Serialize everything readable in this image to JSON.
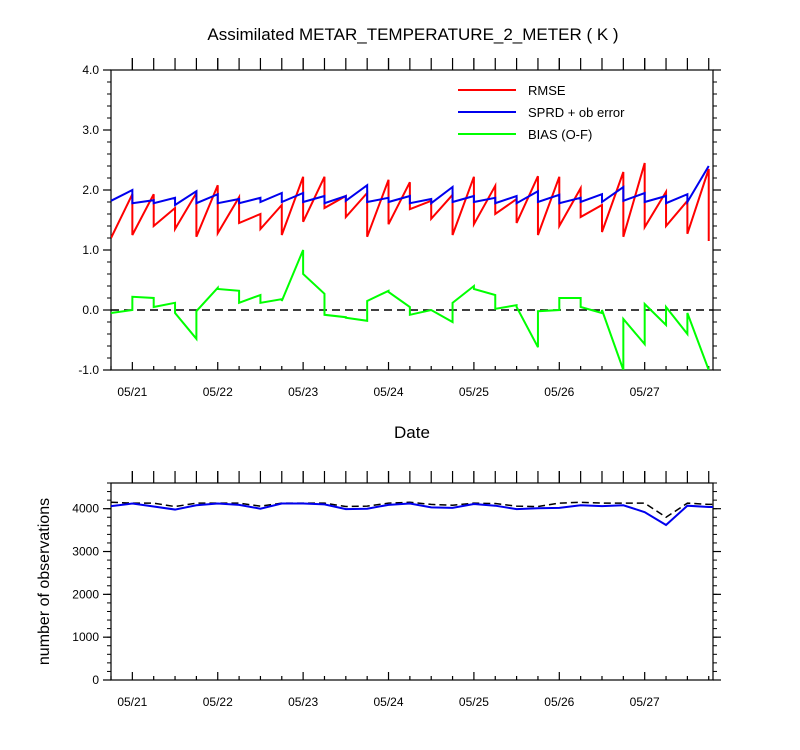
{
  "title": "Assimilated METAR_TEMPERATURE_2_METER ( K )",
  "chart_data": [
    {
      "type": "line",
      "title": "Assimilated METAR_TEMPERATURE_2_METER ( K )",
      "xlabel": "Date",
      "ylabel": "",
      "x_tick_labels": [
        "05/21",
        "05/22",
        "05/23",
        "05/24",
        "05/25",
        "05/26",
        "05/27"
      ],
      "y_tick_labels": [
        "4.0",
        "3.0",
        "2.0",
        "1.0",
        "0.0",
        "-1.0"
      ],
      "ylim": [
        -1.0,
        4.0
      ],
      "xlim": [
        0,
        7.05
      ],
      "legend_position": "top-right",
      "reference_line": {
        "y": 0.0,
        "style": "dashed"
      },
      "series": [
        {
          "name": "RMSE",
          "color": "#ff0000",
          "points": [
            [
              0.0,
              1.2
            ],
            [
              0.25,
              1.93
            ],
            [
              0.25,
              1.25
            ],
            [
              0.5,
              1.93
            ],
            [
              0.5,
              1.4
            ],
            [
              0.75,
              1.7
            ],
            [
              0.75,
              1.35
            ],
            [
              1.0,
              1.95
            ],
            [
              1.0,
              1.22
            ],
            [
              1.25,
              2.08
            ],
            [
              1.25,
              1.28
            ],
            [
              1.5,
              1.88
            ],
            [
              1.5,
              1.45
            ],
            [
              1.75,
              1.6
            ],
            [
              1.75,
              1.35
            ],
            [
              2.0,
              1.75
            ],
            [
              2.0,
              1.25
            ],
            [
              2.25,
              2.22
            ],
            [
              2.25,
              1.47
            ],
            [
              2.5,
              2.22
            ],
            [
              2.5,
              1.7
            ],
            [
              2.75,
              1.9
            ],
            [
              2.75,
              1.55
            ],
            [
              3.0,
              1.95
            ],
            [
              3.0,
              1.22
            ],
            [
              3.25,
              2.17
            ],
            [
              3.25,
              1.43
            ],
            [
              3.5,
              2.13
            ],
            [
              3.5,
              1.68
            ],
            [
              3.75,
              1.82
            ],
            [
              3.75,
              1.52
            ],
            [
              4.0,
              1.92
            ],
            [
              4.0,
              1.25
            ],
            [
              4.25,
              2.22
            ],
            [
              4.25,
              1.43
            ],
            [
              4.5,
              2.07
            ],
            [
              4.5,
              1.6
            ],
            [
              4.75,
              1.85
            ],
            [
              4.75,
              1.45
            ],
            [
              5.0,
              2.23
            ],
            [
              5.0,
              1.25
            ],
            [
              5.25,
              2.22
            ],
            [
              5.25,
              1.4
            ],
            [
              5.5,
              2.03
            ],
            [
              5.5,
              1.55
            ],
            [
              5.75,
              1.75
            ],
            [
              5.75,
              1.3
            ],
            [
              6.0,
              2.3
            ],
            [
              6.0,
              1.22
            ],
            [
              6.25,
              2.45
            ],
            [
              6.25,
              1.38
            ],
            [
              6.5,
              1.97
            ],
            [
              6.5,
              1.4
            ],
            [
              6.75,
              1.82
            ],
            [
              6.75,
              1.27
            ],
            [
              7.0,
              2.35
            ],
            [
              7.0,
              1.15
            ]
          ]
        },
        {
          "name": "SPRD + ob error",
          "color": "#0000ee",
          "points": [
            [
              0.0,
              1.82
            ],
            [
              0.25,
              2.0
            ],
            [
              0.25,
              1.78
            ],
            [
              0.5,
              1.83
            ],
            [
              0.5,
              1.78
            ],
            [
              0.75,
              1.87
            ],
            [
              0.75,
              1.75
            ],
            [
              1.0,
              1.98
            ],
            [
              1.0,
              1.78
            ],
            [
              1.25,
              1.93
            ],
            [
              1.25,
              1.78
            ],
            [
              1.5,
              1.85
            ],
            [
              1.5,
              1.78
            ],
            [
              1.75,
              1.87
            ],
            [
              1.75,
              1.8
            ],
            [
              2.0,
              1.95
            ],
            [
              2.0,
              1.8
            ],
            [
              2.25,
              1.95
            ],
            [
              2.25,
              1.8
            ],
            [
              2.5,
              1.9
            ],
            [
              2.5,
              1.78
            ],
            [
              2.75,
              1.9
            ],
            [
              2.75,
              1.82
            ],
            [
              3.0,
              2.08
            ],
            [
              3.0,
              1.8
            ],
            [
              3.25,
              1.87
            ],
            [
              3.25,
              1.8
            ],
            [
              3.5,
              1.9
            ],
            [
              3.5,
              1.78
            ],
            [
              3.75,
              1.85
            ],
            [
              3.75,
              1.78
            ],
            [
              4.0,
              2.05
            ],
            [
              4.0,
              1.8
            ],
            [
              4.25,
              1.9
            ],
            [
              4.25,
              1.8
            ],
            [
              4.5,
              1.87
            ],
            [
              4.5,
              1.78
            ],
            [
              4.75,
              1.9
            ],
            [
              4.75,
              1.78
            ],
            [
              5.0,
              1.98
            ],
            [
              5.0,
              1.8
            ],
            [
              5.25,
              1.92
            ],
            [
              5.25,
              1.78
            ],
            [
              5.5,
              1.87
            ],
            [
              5.5,
              1.8
            ],
            [
              5.75,
              1.93
            ],
            [
              5.75,
              1.8
            ],
            [
              6.0,
              2.05
            ],
            [
              6.0,
              1.82
            ],
            [
              6.25,
              1.95
            ],
            [
              6.25,
              1.8
            ],
            [
              6.5,
              1.9
            ],
            [
              6.5,
              1.78
            ],
            [
              6.75,
              1.93
            ],
            [
              6.75,
              1.8
            ],
            [
              7.0,
              2.4
            ]
          ]
        },
        {
          "name": "BIAS (O-F)",
          "color": "#00ff00",
          "points": [
            [
              0.0,
              -0.05
            ],
            [
              0.25,
              0.0
            ],
            [
              0.25,
              0.22
            ],
            [
              0.5,
              0.2
            ],
            [
              0.5,
              0.05
            ],
            [
              0.75,
              0.12
            ],
            [
              0.75,
              -0.05
            ],
            [
              1.0,
              -0.48
            ],
            [
              1.0,
              -0.02
            ],
            [
              1.25,
              0.37
            ],
            [
              1.25,
              0.35
            ],
            [
              1.5,
              0.32
            ],
            [
              1.5,
              0.12
            ],
            [
              1.75,
              0.25
            ],
            [
              1.75,
              0.12
            ],
            [
              2.0,
              0.18
            ],
            [
              2.0,
              0.15
            ],
            [
              2.25,
              1.0
            ],
            [
              2.25,
              0.6
            ],
            [
              2.5,
              0.27
            ],
            [
              2.5,
              -0.08
            ],
            [
              2.75,
              -0.12
            ],
            [
              2.75,
              -0.13
            ],
            [
              3.0,
              -0.18
            ],
            [
              3.0,
              0.15
            ],
            [
              3.25,
              0.32
            ],
            [
              3.25,
              0.3
            ],
            [
              3.5,
              0.05
            ],
            [
              3.5,
              -0.08
            ],
            [
              3.75,
              0.0
            ],
            [
              3.75,
              0.0
            ],
            [
              4.0,
              -0.2
            ],
            [
              4.0,
              0.12
            ],
            [
              4.25,
              0.4
            ],
            [
              4.25,
              0.35
            ],
            [
              4.5,
              0.25
            ],
            [
              4.5,
              0.02
            ],
            [
              4.75,
              0.08
            ],
            [
              4.75,
              0.05
            ],
            [
              5.0,
              -0.62
            ],
            [
              5.0,
              -0.02
            ],
            [
              5.25,
              0.0
            ],
            [
              5.25,
              0.2
            ],
            [
              5.5,
              0.2
            ],
            [
              5.5,
              0.05
            ],
            [
              5.75,
              -0.05
            ],
            [
              5.75,
              0.0
            ],
            [
              6.0,
              -1.0
            ],
            [
              6.0,
              -0.15
            ],
            [
              6.25,
              -0.57
            ],
            [
              6.25,
              0.1
            ],
            [
              6.5,
              -0.25
            ],
            [
              6.5,
              0.05
            ],
            [
              6.75,
              -0.4
            ],
            [
              6.75,
              -0.05
            ],
            [
              7.0,
              -1.0
            ]
          ]
        }
      ]
    },
    {
      "type": "line",
      "title": "",
      "xlabel": "",
      "ylabel": "number of observations",
      "x_tick_labels": [
        "05/21",
        "05/22",
        "05/23",
        "05/24",
        "05/25",
        "05/26",
        "05/27"
      ],
      "y_tick_labels": [
        "0",
        "1000",
        "2000",
        "3000",
        "4000"
      ],
      "ylim": [
        0,
        4600
      ],
      "xlim": [
        0,
        7.05
      ],
      "series": [
        {
          "name": "",
          "color": "#000000",
          "style": "dashed",
          "points": [
            [
              0.0,
              4150
            ],
            [
              0.25,
              4130
            ],
            [
              0.5,
              4130
            ],
            [
              0.75,
              4050
            ],
            [
              1.0,
              4130
            ],
            [
              1.25,
              4130
            ],
            [
              1.5,
              4130
            ],
            [
              1.75,
              4060
            ],
            [
              2.0,
              4130
            ],
            [
              2.25,
              4130
            ],
            [
              2.5,
              4130
            ],
            [
              2.75,
              4050
            ],
            [
              3.0,
              4060
            ],
            [
              3.25,
              4130
            ],
            [
              3.5,
              4150
            ],
            [
              3.75,
              4100
            ],
            [
              4.0,
              4080
            ],
            [
              4.25,
              4130
            ],
            [
              4.5,
              4120
            ],
            [
              4.75,
              4060
            ],
            [
              5.0,
              4050
            ],
            [
              5.25,
              4130
            ],
            [
              5.5,
              4150
            ],
            [
              5.75,
              4130
            ],
            [
              6.0,
              4130
            ],
            [
              6.25,
              4130
            ],
            [
              6.5,
              3800
            ],
            [
              6.75,
              4130
            ],
            [
              7.0,
              4100
            ],
            [
              7.05,
              4100
            ]
          ]
        },
        {
          "name": "",
          "color": "#0000ee",
          "style": "solid",
          "points": [
            [
              0.0,
              4060
            ],
            [
              0.25,
              4120
            ],
            [
              0.5,
              4050
            ],
            [
              0.75,
              3980
            ],
            [
              1.0,
              4080
            ],
            [
              1.25,
              4120
            ],
            [
              1.5,
              4090
            ],
            [
              1.75,
              4000
            ],
            [
              2.0,
              4120
            ],
            [
              2.25,
              4120
            ],
            [
              2.5,
              4100
            ],
            [
              2.75,
              3990
            ],
            [
              3.0,
              4000
            ],
            [
              3.25,
              4090
            ],
            [
              3.5,
              4120
            ],
            [
              3.75,
              4030
            ],
            [
              4.0,
              4020
            ],
            [
              4.25,
              4110
            ],
            [
              4.5,
              4070
            ],
            [
              4.75,
              3990
            ],
            [
              5.0,
              4010
            ],
            [
              5.25,
              4020
            ],
            [
              5.5,
              4080
            ],
            [
              5.75,
              4060
            ],
            [
              6.0,
              4080
            ],
            [
              6.25,
              3920
            ],
            [
              6.5,
              3620
            ],
            [
              6.75,
              4070
            ],
            [
              7.0,
              4040
            ],
            [
              7.05,
              4040
            ]
          ]
        }
      ]
    }
  ]
}
